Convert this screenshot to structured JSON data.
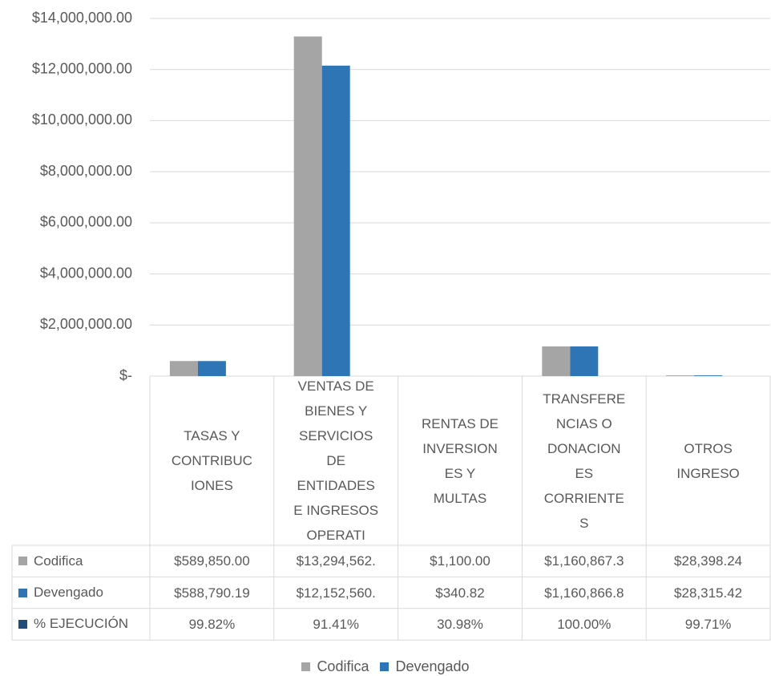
{
  "chart_data": {
    "type": "bar",
    "categories": [
      "TASAS Y\nCONTRIBUC\nIONES",
      "VENTAS DE\nBIENES Y\nSERVICIOS\nDE\nENTIDADES\nE INGRESOS\nOPERATI",
      "RENTAS DE\nINVERSION\nES Y\nMULTAS",
      "TRANSFERE\nNCIAS O\nDONACION\nES\nCORRIENTE\nS",
      "OTROS\nINGRESO"
    ],
    "series": [
      {
        "name": "Codifica",
        "color": "#a5a5a5",
        "values": [
          589850,
          13294562,
          1100,
          1160867.3,
          28398.24
        ],
        "value_labels": [
          "$589,850.00",
          "$13,294,562.",
          "$1,100.00",
          "$1,160,867.3",
          "$28,398.24"
        ]
      },
      {
        "name": "Devengado",
        "color": "#2e75b6",
        "values": [
          588790.19,
          12152560,
          340.82,
          1160866.8,
          28315.42
        ],
        "value_labels": [
          "$588,790.19",
          "$12,152,560.",
          "$340.82",
          "$1,160,866.8",
          "$28,315.42"
        ]
      },
      {
        "name": "% EJECUCIÓN",
        "color": "#1f4e79",
        "values": [
          99.82,
          91.41,
          30.98,
          100.0,
          99.71
        ],
        "value_labels": [
          "99.82%",
          "91.41%",
          "30.98%",
          "100.00%",
          "99.71%"
        ]
      }
    ],
    "legend_series": [
      0,
      1
    ],
    "ylim": [
      0,
      14000000
    ],
    "yticks": [
      {
        "value": 0,
        "label": "$-"
      },
      {
        "value": 2000000,
        "label": "$2,000,000.00"
      },
      {
        "value": 4000000,
        "label": "$4,000,000.00"
      },
      {
        "value": 6000000,
        "label": "$6,000,000.00"
      },
      {
        "value": 8000000,
        "label": "$8,000,000.00"
      },
      {
        "value": 10000000,
        "label": "$10,000,000.00"
      },
      {
        "value": 12000000,
        "label": "$12,000,000.00"
      },
      {
        "value": 14000000,
        "label": "$14,000,000.00"
      }
    ],
    "grid": true
  }
}
